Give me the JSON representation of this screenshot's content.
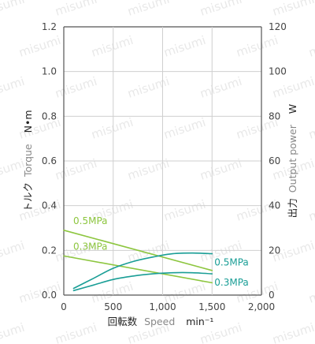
{
  "chart_data": {
    "type": "line",
    "watermark": "misumi",
    "x": {
      "label_jp": "回転数",
      "label_en": "Speed",
      "unit": "min⁻¹",
      "min": 0,
      "max": 2000,
      "ticks": [
        0,
        500,
        1000,
        1500,
        2000
      ],
      "tick_labels": [
        "0",
        "500",
        "1,000",
        "1,500",
        "2,000"
      ]
    },
    "y_left": {
      "label_jp": "トルク",
      "label_en": "Torque",
      "unit": "N•m",
      "min": 0,
      "max": 1.2,
      "ticks": [
        0,
        0.2,
        0.4,
        0.6,
        0.8,
        1.0,
        1.2
      ],
      "tick_labels": [
        "0.0",
        "0.2",
        "0.4",
        "0.6",
        "0.8",
        "1.0",
        "1.2"
      ]
    },
    "y_right": {
      "label_jp": "出力",
      "label_en": "Output power",
      "unit": "W",
      "min": 0,
      "max": 120,
      "ticks": [
        0,
        20,
        40,
        60,
        80,
        100,
        120
      ],
      "tick_labels": [
        "0",
        "20",
        "40",
        "60",
        "80",
        "100",
        "120"
      ]
    },
    "grid": true,
    "series": [
      {
        "label": "0.5MPa",
        "kind": "torque",
        "axis": "left",
        "color": "#8dc63f",
        "x": [
          0,
          1500
        ],
        "values": [
          0.29,
          0.11
        ]
      },
      {
        "label": "0.3MPa",
        "kind": "torque",
        "axis": "left",
        "color": "#8dc63f",
        "x": [
          0,
          1500
        ],
        "values": [
          0.175,
          0.055
        ]
      },
      {
        "label": "0.5MPa",
        "kind": "output",
        "axis": "right",
        "color": "#1a9e96",
        "x": [
          100,
          300,
          500,
          700,
          900,
          1100,
          1300,
          1500
        ],
        "values": [
          3,
          7.5,
          12,
          15,
          17,
          18.5,
          18.8,
          18.5
        ]
      },
      {
        "label": "0.3MPa",
        "kind": "output",
        "axis": "right",
        "color": "#1a9e96",
        "x": [
          100,
          300,
          500,
          700,
          900,
          1100,
          1300,
          1500
        ],
        "values": [
          2,
          4.5,
          7,
          8.5,
          9.5,
          10,
          10,
          9.5
        ]
      }
    ]
  }
}
